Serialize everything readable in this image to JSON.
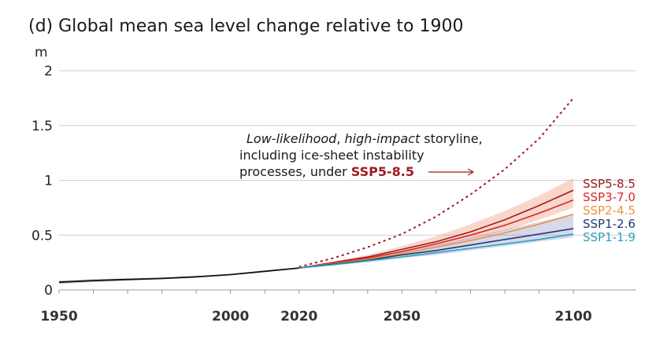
{
  "chart_data": {
    "type": "line",
    "title": "(d) Global mean sea level change relative to 1900",
    "ylabel": "m",
    "xlim": [
      1950,
      2100
    ],
    "ylim": [
      0,
      2
    ],
    "yticks": [
      {
        "value": 0,
        "label": "0"
      },
      {
        "value": 0.5,
        "label": "0.5"
      },
      {
        "value": 1,
        "label": "1"
      },
      {
        "value": 1.5,
        "label": "1.5"
      },
      {
        "value": 2,
        "label": "2"
      }
    ],
    "xticks": [
      {
        "value": 1950,
        "label": "1950"
      },
      {
        "value": 2000,
        "label": "2000"
      },
      {
        "value": 2020,
        "label": "2020"
      },
      {
        "value": 2050,
        "label": "2050"
      },
      {
        "value": 2100,
        "label": "2100"
      }
    ],
    "grid": true,
    "legend": "right, at line ends",
    "historical": {
      "color": "#111111",
      "band_color": "#bdbdbd",
      "x": [
        1950,
        1960,
        1970,
        1980,
        1990,
        2000,
        2010,
        2020
      ],
      "y": [
        0.07,
        0.085,
        0.095,
        0.105,
        0.12,
        0.14,
        0.17,
        0.2
      ],
      "band_lower": [
        0.055,
        0.072,
        0.085,
        0.097,
        0.113,
        0.135,
        0.166,
        0.198
      ],
      "band_upper": [
        0.085,
        0.098,
        0.105,
        0.113,
        0.127,
        0.145,
        0.174,
        0.202
      ]
    },
    "series": [
      {
        "name": "SSP5-8.5",
        "color": "#9e1b22",
        "x": [
          2020,
          2030,
          2040,
          2050,
          2060,
          2070,
          2080,
          2090,
          2100
        ],
        "y": [
          0.2,
          0.25,
          0.3,
          0.37,
          0.44,
          0.53,
          0.64,
          0.77,
          0.91
        ]
      },
      {
        "name": "SSP3-7.0",
        "color": "#d9262c",
        "x": [
          2020,
          2030,
          2040,
          2050,
          2060,
          2070,
          2080,
          2090,
          2100
        ],
        "y": [
          0.2,
          0.245,
          0.29,
          0.35,
          0.42,
          0.5,
          0.59,
          0.7,
          0.82
        ]
      },
      {
        "name": "SSP2-4.5",
        "color": "#e8963a",
        "x": [
          2020,
          2030,
          2040,
          2050,
          2060,
          2070,
          2080,
          2090,
          2100
        ],
        "y": [
          0.2,
          0.24,
          0.28,
          0.33,
          0.39,
          0.45,
          0.52,
          0.6,
          0.69
        ]
      },
      {
        "name": "SSP1-2.6",
        "color": "#1f3b73",
        "x": [
          2020,
          2030,
          2040,
          2050,
          2060,
          2070,
          2080,
          2090,
          2100
        ],
        "y": [
          0.2,
          0.235,
          0.27,
          0.32,
          0.36,
          0.41,
          0.46,
          0.51,
          0.56
        ]
      },
      {
        "name": "SSP1-1.9",
        "color": "#2aa1c4",
        "x": [
          2020,
          2030,
          2040,
          2050,
          2060,
          2070,
          2080,
          2090,
          2100
        ],
        "y": [
          0.2,
          0.23,
          0.265,
          0.3,
          0.34,
          0.38,
          0.42,
          0.46,
          0.51
        ]
      }
    ],
    "bands": [
      {
        "color": "#f0a78a",
        "opacity": 0.45,
        "x": [
          2020,
          2030,
          2040,
          2050,
          2060,
          2070,
          2080,
          2090,
          2100
        ],
        "lower": [
          0.2,
          0.24,
          0.28,
          0.33,
          0.39,
          0.46,
          0.54,
          0.64,
          0.75
        ],
        "upper": [
          0.2,
          0.26,
          0.32,
          0.4,
          0.49,
          0.6,
          0.72,
          0.86,
          1.02
        ]
      },
      {
        "color": "#8f8fc8",
        "opacity": 0.35,
        "x": [
          2020,
          2030,
          2040,
          2050,
          2060,
          2070,
          2080,
          2090,
          2100
        ],
        "lower": [
          0.2,
          0.225,
          0.25,
          0.29,
          0.32,
          0.36,
          0.4,
          0.44,
          0.48
        ],
        "upper": [
          0.2,
          0.24,
          0.29,
          0.35,
          0.41,
          0.48,
          0.55,
          0.62,
          0.69
        ]
      }
    ],
    "storyline": {
      "color": "#9e1b22",
      "style": "dotted",
      "x": [
        2020,
        2030,
        2040,
        2050,
        2060,
        2070,
        2080,
        2090,
        2100
      ],
      "y": [
        0.21,
        0.29,
        0.39,
        0.51,
        0.67,
        0.87,
        1.1,
        1.38,
        1.75
      ],
      "annotation": {
        "line1_italic_1": "Low-likelihood",
        "line1_sep": ", ",
        "line1_italic_2": "high-impact",
        "line1_rest": " storyline,",
        "line2": "including ice-sheet instability",
        "line3": "processes, under ",
        "line3_emph": "SSP5-8.5"
      }
    }
  }
}
